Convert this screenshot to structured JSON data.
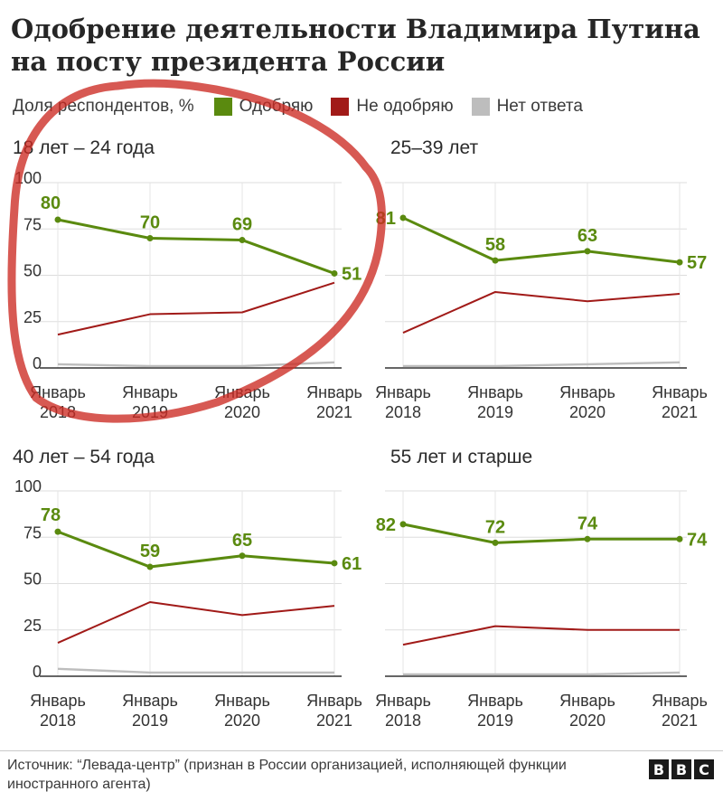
{
  "title": "Одобрение деятельности Владимира Путина на посту президента России",
  "legend": {
    "label": "Доля респондентов, %",
    "items": [
      {
        "name": "Одобряю",
        "color": "#5a8a0f"
      },
      {
        "name": "Не одобряю",
        "color": "#a11a18"
      },
      {
        "name": "Нет ответа",
        "color": "#bdbdbd"
      }
    ]
  },
  "chart_data": [
    {
      "type": "line",
      "title": "18 лет – 24 года",
      "x": [
        "Январь\n2018",
        "Январь\n2019",
        "Январь\n2020",
        "Январь\n2021"
      ],
      "ylim": [
        0,
        100
      ],
      "yticks": [
        "0",
        "25",
        "50",
        "75",
        "100"
      ],
      "series": [
        {
          "name": "Одобряю",
          "values": [
            80,
            70,
            69,
            51
          ],
          "labels": [
            "80",
            "70",
            "69",
            "51"
          ]
        },
        {
          "name": "Не одобряю",
          "values": [
            18,
            29,
            30,
            46
          ]
        },
        {
          "name": "Нет ответа",
          "values": [
            2,
            1,
            1,
            3
          ]
        }
      ]
    },
    {
      "type": "line",
      "title": "25–39 лет",
      "x": [
        "Январь\n2018",
        "Январь\n2019",
        "Январь\n2020",
        "Январь\n2021"
      ],
      "ylim": [
        0,
        100
      ],
      "series": [
        {
          "name": "Одобряю",
          "values": [
            81,
            58,
            63,
            57
          ],
          "labels": [
            "81",
            "58",
            "63",
            "57"
          ]
        },
        {
          "name": "Не одобряю",
          "values": [
            19,
            41,
            36,
            40
          ]
        },
        {
          "name": "Нет ответа",
          "values": [
            1,
            1,
            2,
            3
          ]
        }
      ]
    },
    {
      "type": "line",
      "title": "40 лет – 54 года",
      "x": [
        "Январь\n2018",
        "Январь\n2019",
        "Январь\n2020",
        "Январь\n2021"
      ],
      "ylim": [
        0,
        100
      ],
      "yticks": [
        "0",
        "25",
        "50",
        "75",
        "100"
      ],
      "series": [
        {
          "name": "Одобряю",
          "values": [
            78,
            59,
            65,
            61
          ],
          "labels": [
            "78",
            "59",
            "65",
            "61"
          ]
        },
        {
          "name": "Не одобряю",
          "values": [
            18,
            40,
            33,
            38
          ]
        },
        {
          "name": "Нет ответа",
          "values": [
            4,
            2,
            2,
            2
          ]
        }
      ]
    },
    {
      "type": "line",
      "title": "55 лет и старше",
      "x": [
        "Январь\n2018",
        "Январь\n2019",
        "Январь\n2020",
        "Январь\n2021"
      ],
      "ylim": [
        0,
        100
      ],
      "series": [
        {
          "name": "Одобряю",
          "values": [
            82,
            72,
            74,
            74
          ],
          "labels": [
            "82",
            "72",
            "74",
            "74"
          ]
        },
        {
          "name": "Не одобряю",
          "values": [
            17,
            27,
            25,
            25
          ]
        },
        {
          "name": "Нет ответа",
          "values": [
            1,
            1,
            1,
            2
          ]
        }
      ]
    }
  ],
  "source": "Источник: “Левада-центр” (признан в России организацией, исполняющей функции иностранного агента)",
  "brand": [
    "B",
    "B",
    "C"
  ]
}
